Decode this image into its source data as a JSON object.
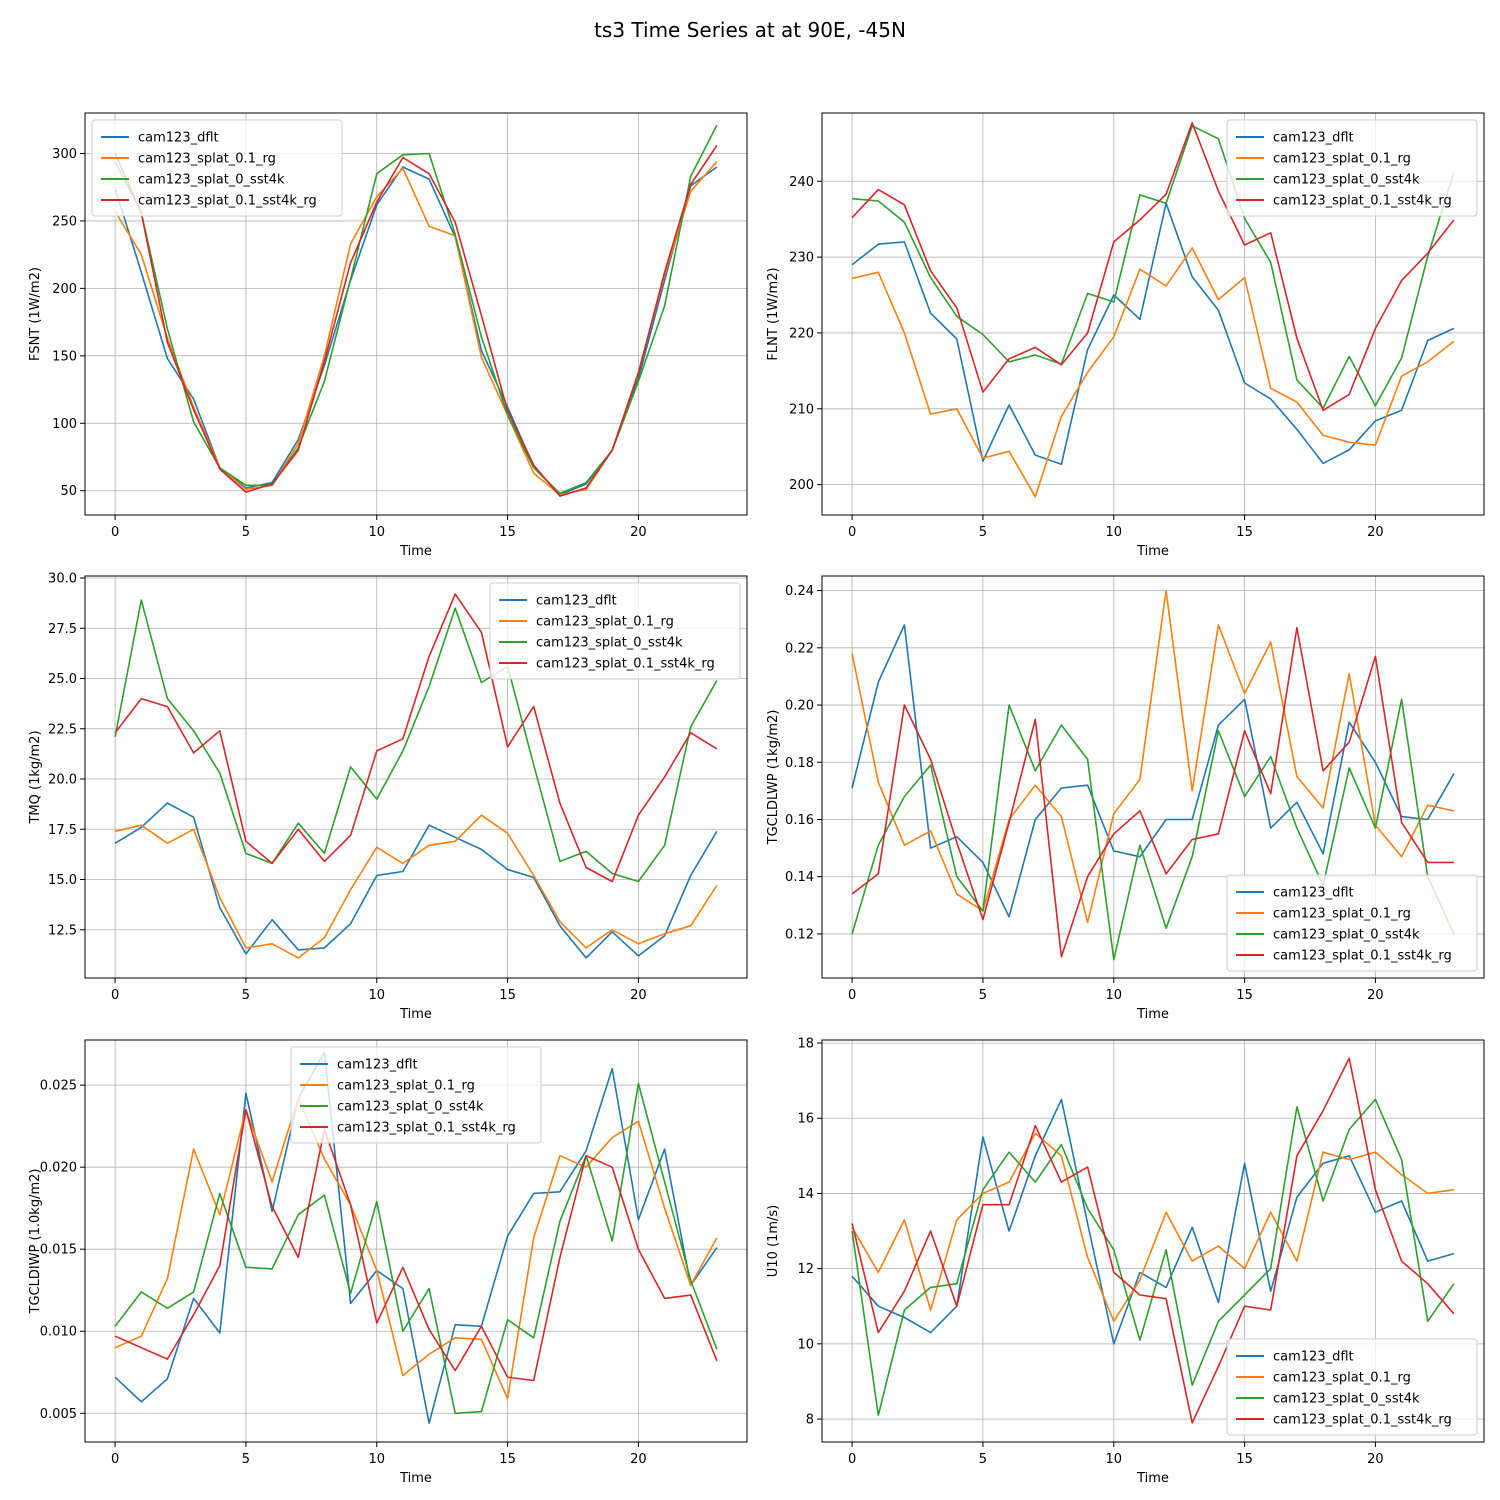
{
  "figure_title": "ts3 Time Series at at 90E, -45N",
  "colors": {
    "cam123_dflt": "#1f77b4",
    "cam123_splat_0.1_rg": "#ff7f0e",
    "cam123_splat_0_sst4k": "#2ca02c",
    "cam123_splat_0.1_sst4k_rg": "#d62728"
  },
  "chart_data": [
    {
      "type": "line",
      "xlabel": "Time",
      "ylabel": "FSNT (1W/m2)",
      "legend_loc": "upper-left",
      "xlim": [
        -1.15,
        24.15
      ],
      "ylim": [
        32,
        330
      ],
      "xticks": [
        0,
        5,
        10,
        15,
        20
      ],
      "yticks": [
        50,
        100,
        150,
        200,
        250,
        300
      ],
      "ytick_labels": [
        "50",
        "100",
        "150",
        "200",
        "250",
        "300"
      ],
      "x": [
        0,
        1,
        2,
        3,
        4,
        5,
        6,
        7,
        8,
        9,
        10,
        11,
        12,
        13,
        14,
        15,
        16,
        17,
        18,
        19,
        20,
        21,
        22,
        23
      ],
      "series": [
        {
          "name": "cam123_dflt",
          "values": [
            274,
            212,
            148,
            118,
            67,
            52,
            56,
            88,
            143,
            206,
            262,
            290,
            281,
            238,
            154,
            112,
            68,
            47,
            55,
            80,
            133,
            206,
            276,
            290
          ]
        },
        {
          "name": "cam123_splat_0.1_rg",
          "values": [
            257,
            225,
            163,
            112,
            67,
            51,
            54,
            85,
            150,
            233,
            268,
            289,
            246,
            239,
            149,
            106,
            63,
            47,
            51,
            80,
            138,
            210,
            272,
            294
          ]
        },
        {
          "name": "cam123_splat_0_sst4k",
          "values": [
            294,
            256,
            170,
            101,
            67,
            54,
            54,
            82,
            131,
            207,
            285,
            299,
            300,
            240,
            164,
            106,
            67,
            48,
            56,
            80,
            131,
            187,
            283,
            321
          ]
        },
        {
          "name": "cam123_splat_0.1_sst4k_rg",
          "values": [
            300,
            256,
            160,
            110,
            66,
            49,
            55,
            80,
            146,
            219,
            264,
            297,
            285,
            249,
            180,
            109,
            69,
            46,
            52,
            80,
            137,
            212,
            277,
            306
          ]
        }
      ]
    },
    {
      "type": "line",
      "xlabel": "Time",
      "ylabel": "FLNT (1W/m2)",
      "legend_loc": "upper-right",
      "xlim": [
        -1.15,
        24.15
      ],
      "ylim": [
        196,
        249
      ],
      "xticks": [
        0,
        5,
        10,
        15,
        20
      ],
      "yticks": [
        200,
        210,
        220,
        230,
        240
      ],
      "ytick_labels": [
        "200",
        "210",
        "220",
        "230",
        "240"
      ],
      "x": [
        0,
        1,
        2,
        3,
        4,
        5,
        6,
        7,
        8,
        9,
        10,
        11,
        12,
        13,
        14,
        15,
        16,
        17,
        18,
        19,
        20,
        21,
        22,
        23
      ],
      "series": [
        {
          "name": "cam123_dflt",
          "values": [
            229,
            231.7,
            232,
            222.6,
            219.2,
            203.1,
            210.5,
            203.9,
            202.7,
            217.8,
            225,
            221.8,
            237.1,
            227.4,
            223,
            213.4,
            211.3,
            207.3,
            202.8,
            204.6,
            208.4,
            209.8,
            219,
            220.6
          ]
        },
        {
          "name": "cam123_splat_0.1_rg",
          "values": [
            227.2,
            228,
            220,
            209.3,
            210,
            203.5,
            204.4,
            198.4,
            209,
            214.8,
            219.5,
            228.4,
            226.2,
            231.2,
            224.4,
            227.3,
            212.7,
            210.9,
            206.5,
            205.6,
            205.2,
            214.3,
            216.2,
            218.9
          ]
        },
        {
          "name": "cam123_splat_0_sst4k",
          "values": [
            237.7,
            237.4,
            234.6,
            227.3,
            222.2,
            219.8,
            216.2,
            217.1,
            215.9,
            225.2,
            224.1,
            238.2,
            237.1,
            247.3,
            245.6,
            235.1,
            229.3,
            213.8,
            210.1,
            216.9,
            210.4,
            216.7,
            230.1,
            241.2
          ]
        },
        {
          "name": "cam123_splat_0.1_sst4k_rg",
          "values": [
            235.2,
            238.9,
            236.9,
            228.2,
            223.3,
            212.2,
            216.6,
            218.1,
            215.8,
            220,
            232,
            234.9,
            238.3,
            247.7,
            238.7,
            231.6,
            233.2,
            219.3,
            209.8,
            211.9,
            220.6,
            226.9,
            230.5,
            234.9
          ]
        }
      ]
    },
    {
      "type": "line",
      "xlabel": "Time",
      "ylabel": "TMQ (1kg/m2)",
      "legend_loc": "upper-right",
      "xlim": [
        -1.15,
        24.15
      ],
      "ylim": [
        10.1,
        30.1
      ],
      "xticks": [
        0,
        5,
        10,
        15,
        20
      ],
      "yticks": [
        12.5,
        15.0,
        17.5,
        20.0,
        22.5,
        25.0,
        27.5,
        30.0
      ],
      "ytick_labels": [
        "12.5",
        "15.0",
        "17.5",
        "20.0",
        "22.5",
        "25.0",
        "27.5",
        "30.0"
      ],
      "x": [
        0,
        1,
        2,
        3,
        4,
        5,
        6,
        7,
        8,
        9,
        10,
        11,
        12,
        13,
        14,
        15,
        16,
        17,
        18,
        19,
        20,
        21,
        22,
        23
      ],
      "series": [
        {
          "name": "cam123_dflt",
          "values": [
            16.8,
            17.6,
            18.8,
            18.1,
            13.6,
            11.3,
            13,
            11.5,
            11.6,
            12.8,
            15.2,
            15.4,
            17.7,
            17.1,
            16.5,
            15.5,
            15.1,
            12.7,
            11.1,
            12.4,
            11.2,
            12.2,
            15.2,
            17.4
          ]
        },
        {
          "name": "cam123_splat_0.1_rg",
          "values": [
            17.4,
            17.7,
            16.8,
            17.5,
            14.1,
            11.6,
            11.8,
            11.1,
            12.1,
            14.5,
            16.6,
            15.8,
            16.7,
            16.9,
            18.2,
            17.3,
            15.2,
            12.9,
            11.6,
            12.5,
            11.8,
            12.3,
            12.7,
            14.7
          ]
        },
        {
          "name": "cam123_splat_0_sst4k",
          "values": [
            22.1,
            28.9,
            24,
            22.4,
            20.3,
            16.3,
            15.8,
            17.8,
            16.3,
            20.6,
            19,
            21.4,
            24.6,
            28.5,
            24.8,
            25.6,
            20.7,
            15.9,
            16.4,
            15.3,
            14.9,
            16.7,
            22.6,
            24.9
          ]
        },
        {
          "name": "cam123_splat_0.1_sst4k_rg",
          "values": [
            22.3,
            24,
            23.6,
            21.3,
            22.4,
            16.9,
            15.8,
            17.5,
            15.9,
            17.2,
            21.4,
            22,
            26.1,
            29.2,
            27.3,
            21.6,
            23.6,
            18.8,
            15.6,
            14.9,
            18.2,
            20.1,
            22.3,
            21.5
          ]
        }
      ]
    },
    {
      "type": "line",
      "xlabel": "Time",
      "ylabel": "TGCLDLWP (1kg/m2)",
      "legend_loc": "lower-right",
      "xlim": [
        -1.15,
        24.15
      ],
      "ylim": [
        0.1046,
        0.2451
      ],
      "xticks": [
        0,
        5,
        10,
        15,
        20
      ],
      "yticks": [
        0.12,
        0.14,
        0.16,
        0.18,
        0.2,
        0.22,
        0.24
      ],
      "ytick_labels": [
        "0.12",
        "0.14",
        "0.16",
        "0.18",
        "0.20",
        "0.22",
        "0.24"
      ],
      "x": [
        0,
        1,
        2,
        3,
        4,
        5,
        6,
        7,
        8,
        9,
        10,
        11,
        12,
        13,
        14,
        15,
        16,
        17,
        18,
        19,
        20,
        21,
        22,
        23
      ],
      "series": [
        {
          "name": "cam123_dflt",
          "values": [
            0.171,
            0.208,
            0.228,
            0.15,
            0.154,
            0.145,
            0.126,
            0.16,
            0.171,
            0.172,
            0.149,
            0.147,
            0.16,
            0.16,
            0.193,
            0.202,
            0.157,
            0.166,
            0.148,
            0.194,
            0.18,
            0.161,
            0.16,
            0.176
          ]
        },
        {
          "name": "cam123_splat_0.1_rg",
          "values": [
            0.218,
            0.173,
            0.151,
            0.156,
            0.134,
            0.128,
            0.16,
            0.172,
            0.161,
            0.124,
            0.162,
            0.174,
            0.24,
            0.17,
            0.228,
            0.204,
            0.222,
            0.175,
            0.164,
            0.211,
            0.158,
            0.147,
            0.165,
            0.163
          ]
        },
        {
          "name": "cam123_splat_0_sst4k",
          "values": [
            0.12,
            0.151,
            0.168,
            0.179,
            0.14,
            0.128,
            0.2,
            0.177,
            0.193,
            0.181,
            0.111,
            0.151,
            0.122,
            0.147,
            0.191,
            0.168,
            0.182,
            0.157,
            0.137,
            0.178,
            0.157,
            0.202,
            0.14,
            0.12
          ]
        },
        {
          "name": "cam123_splat_0.1_sst4k_rg",
          "values": [
            0.134,
            0.141,
            0.2,
            0.181,
            0.152,
            0.125,
            0.159,
            0.195,
            0.112,
            0.14,
            0.155,
            0.163,
            0.141,
            0.153,
            0.155,
            0.191,
            0.169,
            0.227,
            0.177,
            0.187,
            0.217,
            0.159,
            0.145,
            0.145
          ]
        }
      ]
    },
    {
      "type": "line",
      "xlabel": "Time",
      "ylabel": "TGCLDIWP (1.0kg/m2)",
      "legend_loc": "upper-center",
      "xlim": [
        -1.15,
        24.15
      ],
      "ylim": [
        0.00325,
        0.02775
      ],
      "xticks": [
        0,
        5,
        10,
        15,
        20
      ],
      "yticks": [
        0.005,
        0.01,
        0.015,
        0.02,
        0.025
      ],
      "ytick_labels": [
        "0.005",
        "0.010",
        "0.015",
        "0.020",
        "0.025"
      ],
      "x": [
        0,
        1,
        2,
        3,
        4,
        5,
        6,
        7,
        8,
        9,
        10,
        11,
        12,
        13,
        14,
        15,
        16,
        17,
        18,
        19,
        20,
        21,
        22,
        23
      ],
      "series": [
        {
          "name": "cam123_dflt",
          "values": [
            0.0072,
            0.0057,
            0.0071,
            0.012,
            0.0099,
            0.0245,
            0.0173,
            0.0242,
            0.027,
            0.0117,
            0.0137,
            0.0126,
            0.0044,
            0.0104,
            0.0103,
            0.0158,
            0.0184,
            0.0185,
            0.021,
            0.026,
            0.0168,
            0.0211,
            0.0128,
            0.0151
          ]
        },
        {
          "name": "cam123_splat_0.1_rg",
          "values": [
            0.009,
            0.0097,
            0.0132,
            0.0211,
            0.0171,
            0.0235,
            0.0191,
            0.0242,
            0.0205,
            0.0177,
            0.0137,
            0.0073,
            0.0086,
            0.0096,
            0.0095,
            0.0059,
            0.0157,
            0.0207,
            0.02,
            0.0218,
            0.0228,
            0.0175,
            0.0128,
            0.0157
          ]
        },
        {
          "name": "cam123_splat_0_sst4k",
          "values": [
            0.0103,
            0.0124,
            0.0114,
            0.0124,
            0.0184,
            0.0139,
            0.0138,
            0.0171,
            0.0183,
            0.0123,
            0.0179,
            0.01,
            0.0126,
            0.005,
            0.0051,
            0.0107,
            0.0096,
            0.0167,
            0.0207,
            0.0155,
            0.0251,
            0.0191,
            0.0131,
            0.0089
          ]
        },
        {
          "name": "cam123_splat_0.1_sst4k_rg",
          "values": [
            0.0097,
            0.009,
            0.0083,
            0.011,
            0.014,
            0.0235,
            0.0176,
            0.0145,
            0.0223,
            0.0177,
            0.0105,
            0.0139,
            0.0101,
            0.0076,
            0.0103,
            0.0072,
            0.007,
            0.0145,
            0.0207,
            0.02,
            0.015,
            0.012,
            0.0122,
            0.0082
          ]
        }
      ]
    },
    {
      "type": "line",
      "xlabel": "Time",
      "ylabel": "U10 (1m/s)",
      "legend_loc": "lower-right",
      "xlim": [
        -1.15,
        24.15
      ],
      "ylim": [
        7.39,
        18.08
      ],
      "xticks": [
        0,
        5,
        10,
        15,
        20
      ],
      "yticks": [
        8,
        10,
        12,
        14,
        16,
        18
      ],
      "ytick_labels": [
        "8",
        "10",
        "12",
        "14",
        "16",
        "18"
      ],
      "x": [
        0,
        1,
        2,
        3,
        4,
        5,
        6,
        7,
        8,
        9,
        10,
        11,
        12,
        13,
        14,
        15,
        16,
        17,
        18,
        19,
        20,
        21,
        22,
        23
      ],
      "series": [
        {
          "name": "cam123_dflt",
          "values": [
            11.8,
            11.0,
            10.7,
            10.3,
            11.0,
            15.5,
            13.0,
            15.0,
            16.5,
            13.2,
            10.0,
            11.9,
            11.5,
            13.1,
            11.1,
            14.8,
            11.4,
            13.9,
            14.8,
            15.0,
            13.5,
            13.8,
            12.2,
            12.4
          ]
        },
        {
          "name": "cam123_splat_0.1_rg",
          "values": [
            13.1,
            11.9,
            13.3,
            10.9,
            13.3,
            14.0,
            14.3,
            15.6,
            15.0,
            12.3,
            10.6,
            11.7,
            13.5,
            12.2,
            12.6,
            12.0,
            13.5,
            12.2,
            15.1,
            14.9,
            15.1,
            14.5,
            14.0,
            14.1
          ]
        },
        {
          "name": "cam123_splat_0_sst4k",
          "values": [
            13.0,
            8.1,
            10.9,
            11.5,
            11.6,
            14.1,
            15.1,
            14.3,
            15.3,
            13.6,
            12.5,
            10.1,
            12.5,
            8.9,
            10.6,
            11.3,
            12.0,
            16.3,
            13.8,
            15.7,
            16.5,
            14.9,
            10.6,
            11.6
          ]
        },
        {
          "name": "cam123_splat_0.1_sst4k_rg",
          "values": [
            13.2,
            10.3,
            11.4,
            13.0,
            11.0,
            13.7,
            13.7,
            15.8,
            14.3,
            14.7,
            11.9,
            11.3,
            11.2,
            7.9,
            9.4,
            11.0,
            10.9,
            15.0,
            16.2,
            17.6,
            14.1,
            12.2,
            11.6,
            10.8
          ]
        }
      ]
    }
  ]
}
